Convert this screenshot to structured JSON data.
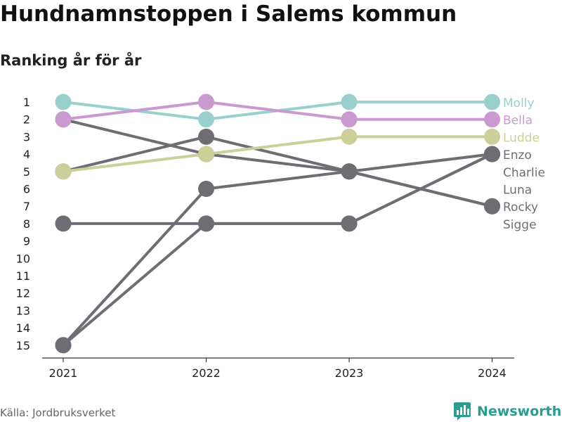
{
  "title": "Hundnamnstoppen i Salems kommun",
  "subtitle": "Ranking år för år",
  "source": "Källa: Jordbruksverket",
  "brand": "Newsworthy",
  "chart_data": {
    "type": "line",
    "title": "Hundnamnstoppen i Salems kommun",
    "subtitle": "Ranking år för år",
    "xlabel": "",
    "ylabel": "",
    "x": [
      "2021",
      "2022",
      "2023",
      "2024"
    ],
    "y_ticks": [
      "1",
      "2",
      "3",
      "4",
      "5",
      "6",
      "7",
      "8",
      "9",
      "10",
      "11",
      "12",
      "13",
      "14",
      "15"
    ],
    "ylim": [
      1,
      15
    ],
    "y_reversed": true,
    "grid": false,
    "series": [
      {
        "name": "Molly",
        "values": [
          1,
          2,
          1,
          1
        ],
        "color": "#99cfcd"
      },
      {
        "name": "Bella",
        "values": [
          2,
          1,
          2,
          2
        ],
        "color": "#c999cf"
      },
      {
        "name": "Ludde",
        "values": [
          5,
          4,
          3,
          3
        ],
        "color": "#cccf99"
      },
      {
        "name": "Enzo",
        "values": [
          15,
          6,
          5,
          4
        ],
        "color": "#6e6d73"
      },
      {
        "name": "Charlie",
        "values": [
          8,
          8,
          8,
          4
        ],
        "color": "#6e6d73"
      },
      {
        "name": "Luna",
        "values": [
          2,
          4,
          5,
          7
        ],
        "color": "#6e6d73"
      },
      {
        "name": "Rocky",
        "values": [
          5,
          3,
          5,
          7
        ],
        "color": "#6e6d73"
      },
      {
        "name": "Sigge",
        "values": [
          15,
          8,
          8,
          4
        ],
        "color": "#6e6d73"
      }
    ]
  }
}
